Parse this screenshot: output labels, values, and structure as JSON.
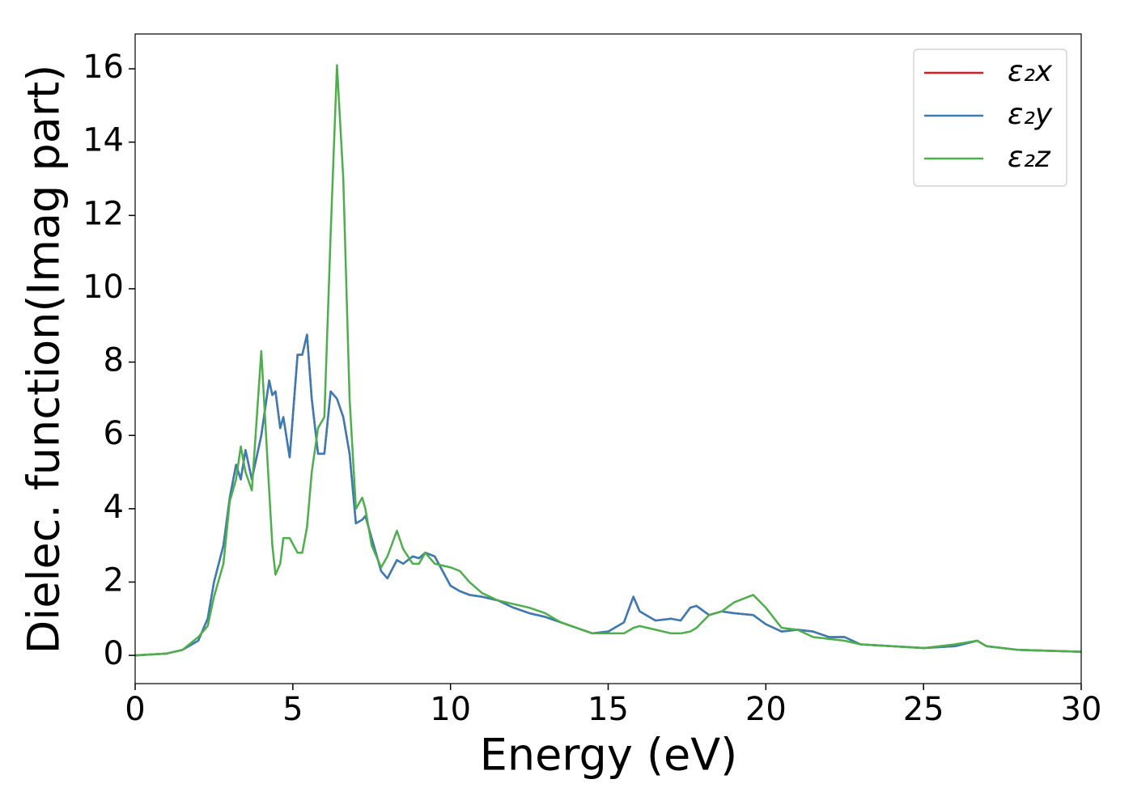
{
  "chart_data": {
    "type": "line",
    "xlabel": "Energy (eV)",
    "ylabel": "Dielec. function(Imag part)",
    "x": [
      0,
      1,
      1.5,
      2,
      2.3,
      2.5,
      2.8,
      3.0,
      3.2,
      3.35,
      3.5,
      3.7,
      4.0,
      4.25,
      4.35,
      4.45,
      4.6,
      4.7,
      4.9,
      5.15,
      5.3,
      5.45,
      5.6,
      5.8,
      6.0,
      6.2,
      6.4,
      6.6,
      6.8,
      7.0,
      7.2,
      7.3,
      7.5,
      7.8,
      8.0,
      8.3,
      8.5,
      8.8,
      9.0,
      9.2,
      9.5,
      10.0,
      10.3,
      10.6,
      11.0,
      11.5,
      12.0,
      12.5,
      13.0,
      13.5,
      14.0,
      14.5,
      15.0,
      15.5,
      15.8,
      16.0,
      16.5,
      17.0,
      17.3,
      17.6,
      17.8,
      18.2,
      18.6,
      19.0,
      19.6,
      20.0,
      20.5,
      21.0,
      21.5,
      22.0,
      22.5,
      23.0,
      24.0,
      25.0,
      26.0,
      26.7,
      27.0,
      28.0,
      30.0
    ],
    "series": [
      {
        "name": "ε₂x",
        "color": "#e41a1c",
        "values": [
          0,
          0.05,
          0.15,
          0.4,
          1.0,
          2.0,
          3.0,
          4.3,
          5.2,
          4.8,
          5.6,
          4.8,
          6.0,
          7.5,
          7.1,
          7.2,
          6.2,
          6.5,
          5.4,
          8.2,
          8.2,
          8.75,
          7.0,
          5.5,
          5.5,
          7.2,
          7.0,
          6.5,
          5.5,
          3.6,
          3.7,
          3.8,
          3.2,
          2.3,
          2.1,
          2.6,
          2.5,
          2.7,
          2.65,
          2.8,
          2.7,
          1.9,
          1.75,
          1.65,
          1.6,
          1.5,
          1.3,
          1.15,
          1.05,
          0.9,
          0.75,
          0.6,
          0.65,
          0.9,
          1.6,
          1.2,
          0.95,
          1.0,
          0.95,
          1.3,
          1.35,
          1.1,
          1.2,
          1.15,
          1.1,
          0.85,
          0.65,
          0.7,
          0.65,
          0.5,
          0.5,
          0.3,
          0.25,
          0.2,
          0.25,
          0.4,
          0.25,
          0.15,
          0.1
        ]
      },
      {
        "name": "ε₂y",
        "color": "#377eb8",
        "values": [
          0,
          0.05,
          0.15,
          0.4,
          1.0,
          2.0,
          3.0,
          4.3,
          5.2,
          4.8,
          5.6,
          4.8,
          6.0,
          7.5,
          7.1,
          7.2,
          6.2,
          6.5,
          5.4,
          8.2,
          8.2,
          8.75,
          7.0,
          5.5,
          5.5,
          7.2,
          7.0,
          6.5,
          5.5,
          3.6,
          3.7,
          3.8,
          3.2,
          2.3,
          2.1,
          2.6,
          2.5,
          2.7,
          2.65,
          2.8,
          2.7,
          1.9,
          1.75,
          1.65,
          1.6,
          1.5,
          1.3,
          1.15,
          1.05,
          0.9,
          0.75,
          0.6,
          0.65,
          0.9,
          1.6,
          1.2,
          0.95,
          1.0,
          0.95,
          1.3,
          1.35,
          1.1,
          1.2,
          1.15,
          1.1,
          0.85,
          0.65,
          0.7,
          0.65,
          0.5,
          0.5,
          0.3,
          0.25,
          0.2,
          0.25,
          0.4,
          0.25,
          0.15,
          0.1
        ]
      },
      {
        "name": "ε₂z",
        "color": "#4daf4a",
        "values": [
          0,
          0.05,
          0.15,
          0.5,
          0.8,
          1.6,
          2.5,
          4.2,
          4.8,
          5.7,
          5.0,
          4.5,
          8.3,
          4.5,
          3.0,
          2.2,
          2.5,
          3.2,
          3.2,
          2.8,
          2.8,
          3.5,
          5.0,
          6.2,
          6.5,
          11.5,
          16.1,
          13,
          7,
          4.0,
          4.3,
          4.0,
          3.0,
          2.4,
          2.7,
          3.4,
          2.9,
          2.5,
          2.5,
          2.8,
          2.5,
          2.4,
          2.3,
          2.0,
          1.7,
          1.5,
          1.4,
          1.3,
          1.15,
          0.9,
          0.75,
          0.6,
          0.6,
          0.6,
          0.75,
          0.8,
          0.7,
          0.6,
          0.6,
          0.65,
          0.75,
          1.1,
          1.2,
          1.45,
          1.65,
          1.3,
          0.75,
          0.7,
          0.5,
          0.45,
          0.4,
          0.3,
          0.25,
          0.2,
          0.3,
          0.4,
          0.25,
          0.15,
          0.1
        ]
      }
    ],
    "xlim": [
      0,
      30
    ],
    "xticks": [
      0,
      5,
      10,
      15,
      20,
      25,
      30
    ],
    "ylim": [
      -0.77,
      16.95
    ],
    "yticks": [
      0,
      2,
      4,
      6,
      8,
      10,
      12,
      14,
      16
    ],
    "legend": "upper right",
    "grid": false
  }
}
